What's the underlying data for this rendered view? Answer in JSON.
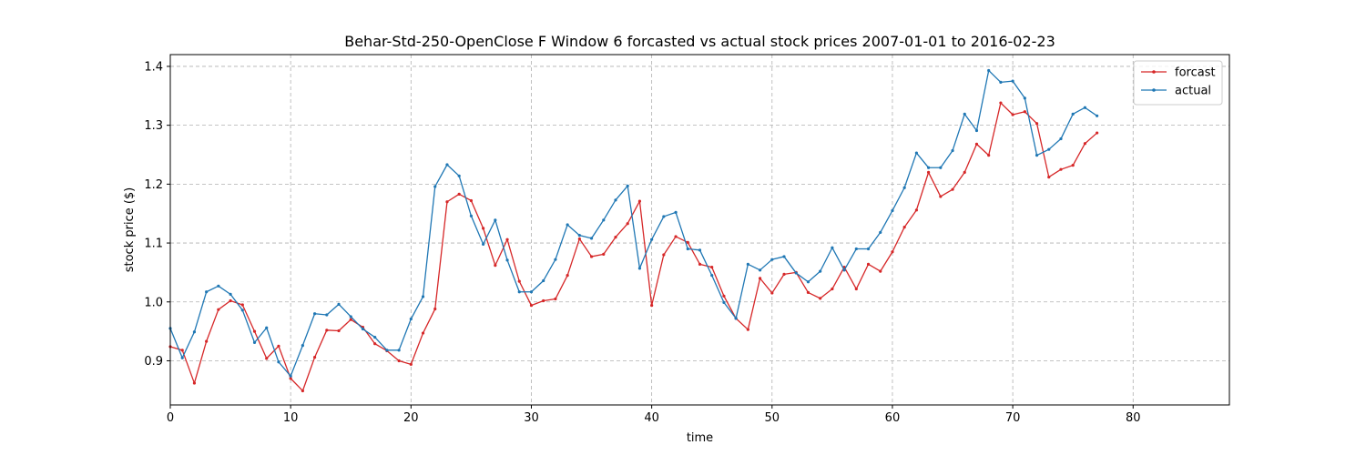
{
  "chart_data": {
    "type": "line",
    "title": "Behar-Std-250-OpenClose F Window 6 forcasted vs actual stock prices 2007-01-01 to 2016-02-23",
    "xlabel": "time",
    "ylabel": "stock price ($)",
    "xlim": [
      0,
      88
    ],
    "ylim": [
      0.825,
      1.42
    ],
    "xticks": [
      0,
      10,
      20,
      30,
      40,
      50,
      60,
      70,
      80
    ],
    "yticks": [
      0.9,
      1.0,
      1.1,
      1.2,
      1.3,
      1.4
    ],
    "xtick_labels": [
      "0",
      "10",
      "20",
      "30",
      "40",
      "50",
      "60",
      "70",
      "80"
    ],
    "ytick_labels": [
      "0.9",
      "1.0",
      "1.1",
      "1.2",
      "1.3",
      "1.4"
    ],
    "grid": true,
    "legend_position": "top-right",
    "series": [
      {
        "name": "forcast",
        "color": "#d62728",
        "values": [
          0.924,
          0.918,
          0.862,
          0.933,
          0.987,
          1.002,
          0.995,
          0.95,
          0.904,
          0.925,
          0.87,
          0.849,
          0.906,
          0.952,
          0.951,
          0.97,
          0.957,
          0.929,
          0.917,
          0.9,
          0.894,
          0.947,
          0.988,
          1.17,
          1.183,
          1.172,
          1.125,
          1.062,
          1.106,
          1.035,
          0.994,
          1.002,
          1.005,
          1.045,
          1.107,
          1.077,
          1.081,
          1.11,
          1.133,
          1.171,
          0.994,
          1.08,
          1.111,
          1.101,
          1.064,
          1.059,
          1.01,
          0.972,
          0.953,
          1.04,
          1.015,
          1.047,
          1.05,
          1.016,
          1.006,
          1.022,
          1.059,
          1.022,
          1.064,
          1.052,
          1.085,
          1.127,
          1.156,
          1.22,
          1.179,
          1.191,
          1.22,
          1.268,
          1.249,
          1.338,
          1.318,
          1.323,
          1.303,
          1.212,
          1.225,
          1.232,
          1.269,
          1.287
        ]
      },
      {
        "name": "actual",
        "color": "#1f77b4",
        "values": [
          0.955,
          0.905,
          0.949,
          1.017,
          1.027,
          1.013,
          0.986,
          0.931,
          0.956,
          0.898,
          0.874,
          0.926,
          0.98,
          0.978,
          0.996,
          0.975,
          0.954,
          0.94,
          0.918,
          0.918,
          0.971,
          1.009,
          1.196,
          1.233,
          1.214,
          1.146,
          1.098,
          1.139,
          1.071,
          1.017,
          1.017,
          1.036,
          1.072,
          1.131,
          1.113,
          1.108,
          1.139,
          1.173,
          1.197,
          1.057,
          1.106,
          1.145,
          1.152,
          1.09,
          1.088,
          1.045,
          0.999,
          0.972,
          1.064,
          1.054,
          1.072,
          1.077,
          1.049,
          1.034,
          1.052,
          1.092,
          1.054,
          1.09,
          1.09,
          1.118,
          1.155,
          1.194,
          1.253,
          1.228,
          1.228,
          1.257,
          1.319,
          1.291,
          1.393,
          1.373,
          1.375,
          1.346,
          1.249,
          1.259,
          1.277,
          1.319,
          1.33,
          1.316
        ]
      }
    ]
  }
}
